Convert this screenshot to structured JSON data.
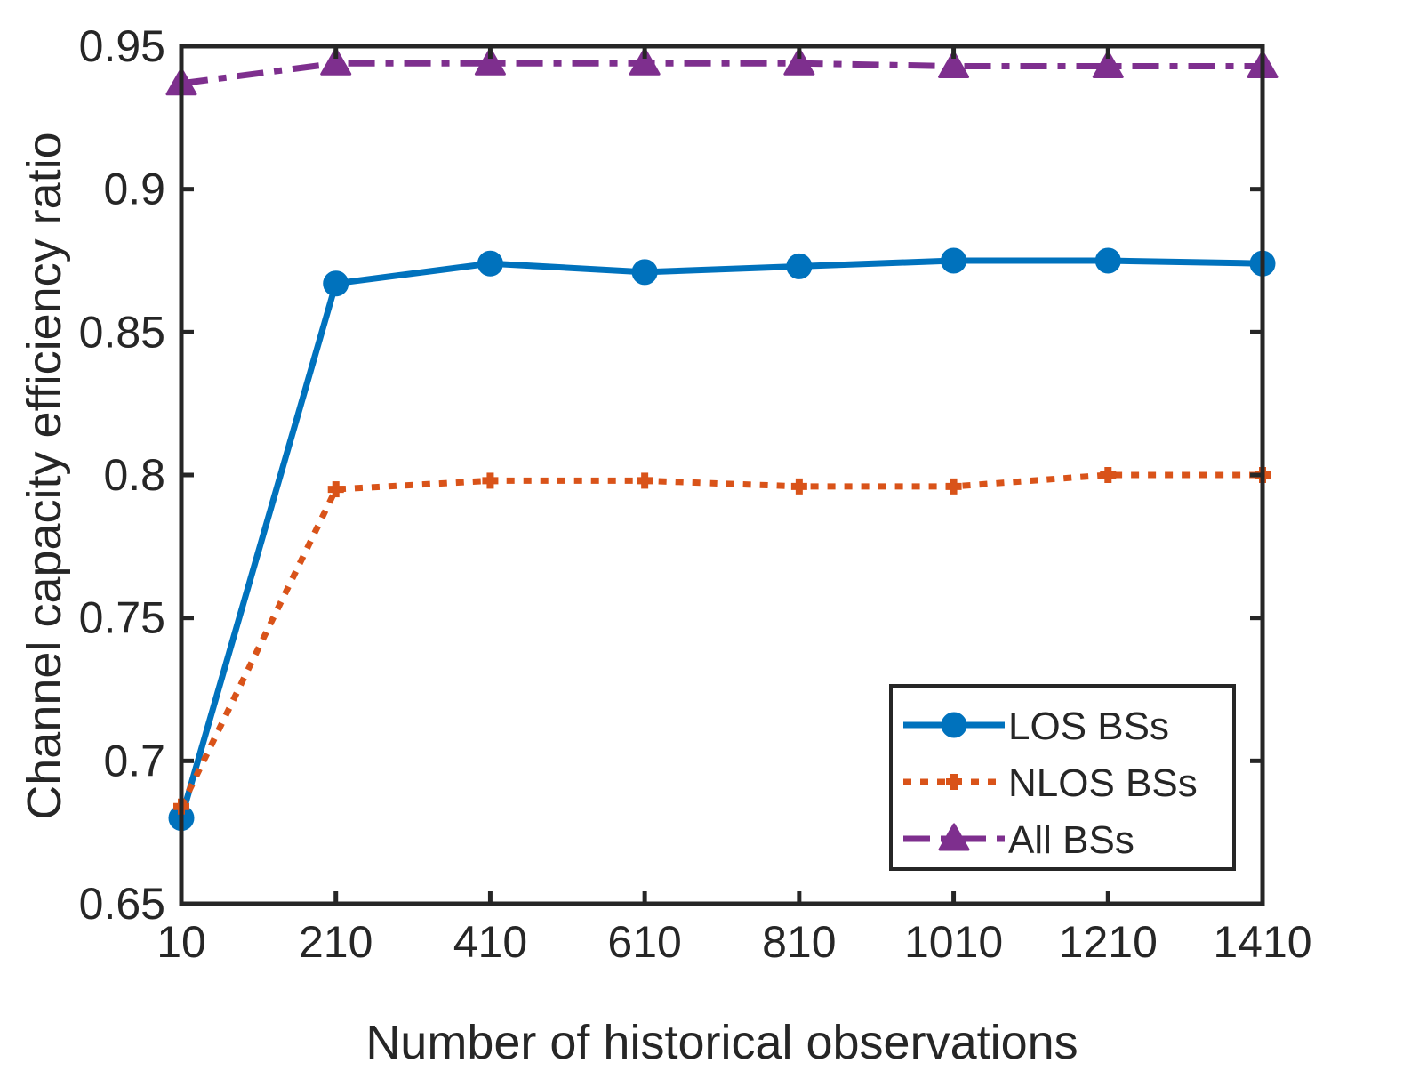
{
  "chart_data": {
    "type": "line",
    "title": "",
    "xlabel": "Number of historical observations",
    "ylabel": "Channel capacity efficiency ratio",
    "x": [
      10,
      210,
      410,
      610,
      810,
      1010,
      1210,
      1410
    ],
    "xlim": [
      10,
      1410
    ],
    "ylim": [
      0.65,
      0.95
    ],
    "xticks": [
      10,
      210,
      410,
      610,
      810,
      1010,
      1210,
      1410
    ],
    "xtick_labels": [
      "10",
      "210",
      "410",
      "610",
      "810",
      "1010",
      "1210",
      "1410"
    ],
    "yticks": [
      0.65,
      0.7,
      0.75,
      0.8,
      0.85,
      0.9,
      0.95
    ],
    "ytick_labels": [
      "0.65",
      "0.7",
      "0.75",
      "0.8",
      "0.85",
      "0.9",
      "0.95"
    ],
    "grid": false,
    "legend_position": "bottom-right",
    "series": [
      {
        "name": "LOS BSs",
        "values": [
          0.68,
          0.867,
          0.874,
          0.871,
          0.873,
          0.875,
          0.875,
          0.874
        ],
        "color": "#0072BD",
        "line_style": "solid",
        "marker": "circle"
      },
      {
        "name": "NLOS BSs",
        "values": [
          0.684,
          0.795,
          0.798,
          0.798,
          0.796,
          0.796,
          0.8,
          0.8
        ],
        "color": "#D95319",
        "line_style": "dotted",
        "marker": "plus"
      },
      {
        "name": "All BSs",
        "values": [
          0.937,
          0.944,
          0.944,
          0.944,
          0.944,
          0.943,
          0.943,
          0.943
        ],
        "color": "#7E2F8E",
        "line_style": "dashdot",
        "marker": "triangle"
      }
    ]
  }
}
